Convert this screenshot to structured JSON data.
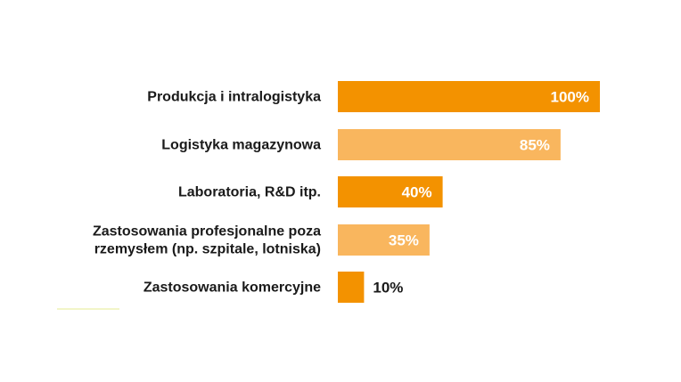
{
  "chart_data": {
    "type": "bar",
    "orientation": "horizontal",
    "categories": [
      "Produkcja i intralogistyka",
      "Logistyka magazynowa",
      "Laboratoria, R&D itp.",
      "Zastosowania profesjonalne poza rzemysłem (np. szpitale, lotniska)",
      "Zastosowania komercyjne"
    ],
    "category_lines": [
      [
        "Produkcja i intralogistyka"
      ],
      [
        "Logistyka magazynowa"
      ],
      [
        "Laboratoria, R&D itp."
      ],
      [
        "Zastosowania profesjonalne poza",
        "rzemysłem (np. szpitale, lotniska)"
      ],
      [
        "Zastosowania komercyjne"
      ]
    ],
    "values": [
      100,
      85,
      40,
      35,
      10
    ],
    "data_labels": [
      "100%",
      "85%",
      "40%",
      "35%",
      "10%"
    ],
    "bar_colors": [
      "#f39200",
      "#f9b65e",
      "#f39200",
      "#f9b65e",
      "#f39200"
    ],
    "label_color_inside": "#ffffff",
    "label_color_outside": "#1a1a1a",
    "xlim": [
      0,
      100
    ],
    "grid": false,
    "legend": "none"
  }
}
